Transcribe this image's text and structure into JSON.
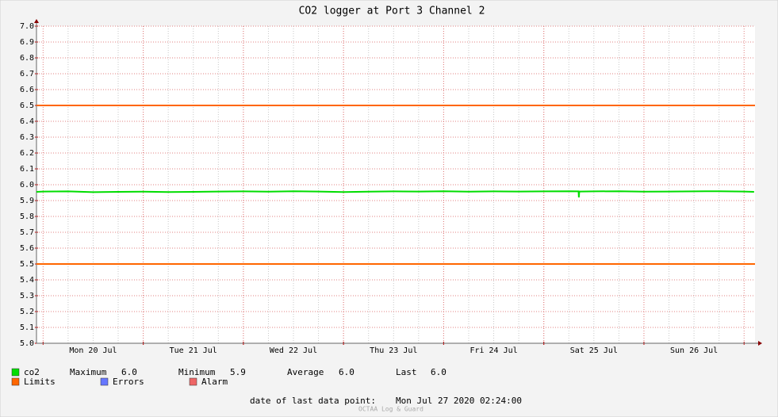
{
  "chart_data": {
    "type": "line",
    "title": "CO2 logger at Port 3 Channel 2",
    "xlim": [
      "2020-07-19 22:25",
      "2020-07-27 02:37"
    ],
    "xticks": [
      {
        "value": "2020-07-20 12:00",
        "label": "Mon 20 Jul"
      },
      {
        "value": "2020-07-21 12:00",
        "label": "Tue 21 Jul"
      },
      {
        "value": "2020-07-22 12:00",
        "label": "Wed 22 Jul"
      },
      {
        "value": "2020-07-23 12:00",
        "label": "Thu 23 Jul"
      },
      {
        "value": "2020-07-24 12:00",
        "label": "Fri 24 Jul"
      },
      {
        "value": "2020-07-25 12:00",
        "label": "Sat 25 Jul"
      },
      {
        "value": "2020-07-26 12:00",
        "label": "Sun 26 Jul"
      }
    ],
    "ylim": [
      5.0,
      7.0
    ],
    "yticks": [
      {
        "value": 5.0,
        "label": "5.0"
      },
      5.1,
      5.2,
      5.3,
      5.4,
      5.5,
      5.6,
      5.7,
      5.8,
      5.9,
      {
        "value": 6.0,
        "label": "6.0"
      },
      6.1,
      6.2,
      6.3,
      6.4,
      6.5,
      6.6,
      6.7,
      6.8,
      6.9,
      {
        "value": 7.0,
        "label": "7.0"
      }
    ],
    "grid": true,
    "x": [
      "2020-07-19 22:25",
      "2020-07-20 00:00",
      "2020-07-20 06:00",
      "2020-07-20 12:00",
      "2020-07-20 18:00",
      "2020-07-21 00:00",
      "2020-07-21 06:00",
      "2020-07-21 12:00",
      "2020-07-21 18:00",
      "2020-07-22 00:00",
      "2020-07-22 06:00",
      "2020-07-22 12:00",
      "2020-07-22 18:00",
      "2020-07-23 00:00",
      "2020-07-23 06:00",
      "2020-07-23 12:00",
      "2020-07-23 18:00",
      "2020-07-24 00:00",
      "2020-07-24 06:00",
      "2020-07-24 12:00",
      "2020-07-24 18:00",
      "2020-07-25 00:00",
      "2020-07-25 06:00",
      "2020-07-25 08:20",
      "2020-07-25 08:24",
      "2020-07-25 08:30",
      "2020-07-25 12:00",
      "2020-07-25 18:00",
      "2020-07-26 00:00",
      "2020-07-26 06:00",
      "2020-07-26 12:00",
      "2020-07-26 18:00",
      "2020-07-27 00:00",
      "2020-07-27 02:24"
    ],
    "series": [
      {
        "name": "co2",
        "color": "#00dd00",
        "values": [
          5.955,
          5.957,
          5.958,
          5.953,
          5.955,
          5.956,
          5.954,
          5.955,
          5.957,
          5.958,
          5.956,
          5.959,
          5.957,
          5.954,
          5.956,
          5.958,
          5.957,
          5.959,
          5.956,
          5.958,
          5.957,
          5.958,
          5.959,
          5.958,
          5.92,
          5.957,
          5.958,
          5.959,
          5.956,
          5.957,
          5.958,
          5.959,
          5.957,
          5.955
        ]
      }
    ],
    "limits": {
      "name": "Limits",
      "color": "#ff6600",
      "values": [
        6.5,
        5.5
      ]
    },
    "legend_extra": [
      {
        "name": "Errors",
        "color": "#6677ff"
      },
      {
        "name": "Alarm",
        "color": "#ee6666"
      }
    ],
    "stats": [
      {
        "name": "Maximum",
        "value": "6.0"
      },
      {
        "name": "Minimum",
        "value": "5.9"
      },
      {
        "name": "Average",
        "value": "6.0"
      },
      {
        "name": "Last",
        "value": "6.0"
      }
    ],
    "footer": {
      "label": "date of last data point:",
      "value": "Mon Jul 27 2020 02:24:00"
    },
    "watermark": "OCTAA Log & Guard"
  }
}
